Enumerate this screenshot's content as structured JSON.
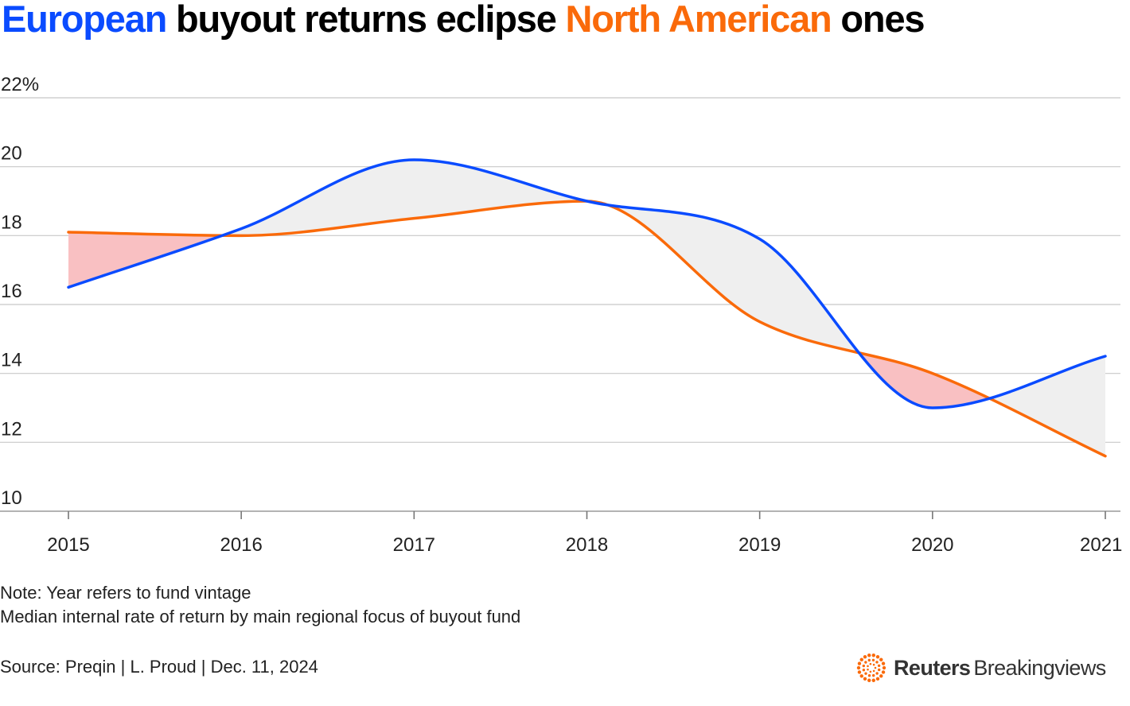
{
  "title": {
    "part1": "European",
    "part2": " buyout returns eclipse ",
    "part3": "North American",
    "part4": " ones"
  },
  "colors": {
    "europe": "#0a4bff",
    "north_america": "#fa6a0a",
    "fill_eu_above": "#efefef",
    "fill_na_above": "#f9c0c2",
    "grid": "#c8c8c8"
  },
  "chart_data": {
    "type": "line",
    "title": "European buyout returns eclipse North American ones",
    "xlabel": "",
    "ylabel": "",
    "x": [
      2015,
      2016,
      2017,
      2018,
      2019,
      2020,
      2021
    ],
    "categories": [
      "2015",
      "2016",
      "2017",
      "2018",
      "2019",
      "2020",
      "2021"
    ],
    "series": [
      {
        "name": "Europe",
        "values": [
          16.5,
          18.2,
          20.2,
          19.0,
          17.9,
          13.0,
          14.5
        ]
      },
      {
        "name": "North America",
        "values": [
          18.1,
          18.0,
          18.5,
          19.0,
          15.5,
          14.0,
          11.6
        ]
      }
    ],
    "ylim": [
      10,
      22
    ],
    "yticks": [
      10,
      12,
      14,
      16,
      18,
      20,
      22
    ],
    "ytick_labels": [
      "10",
      "12",
      "14",
      "16",
      "18",
      "20",
      "22%"
    ],
    "grid": true,
    "shading": "area between the two lines; grey where Europe is higher, pink where North America is higher"
  },
  "notes": {
    "line1": "Note: Year refers to fund vintage",
    "line2": "Median internal rate of return by main regional focus of buyout fund"
  },
  "source": "Source: Preqin | L. Proud | Dec. 11, 2024",
  "brand": {
    "bold": "Reuters",
    "regular": "Breakingviews",
    "icon": "reuters-dot-logo-icon"
  }
}
